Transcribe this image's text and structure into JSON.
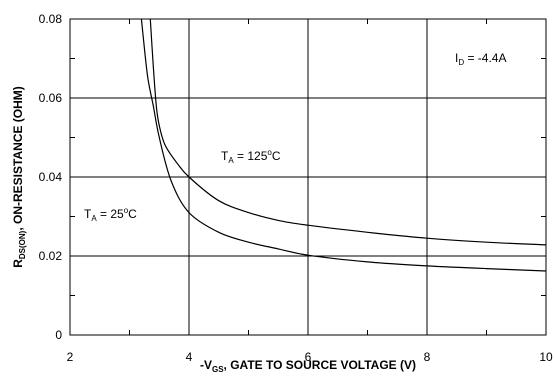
{
  "chart_data": {
    "type": "line",
    "xlim": [
      2,
      10
    ],
    "ylim": [
      0,
      0.08
    ],
    "x_ticks": [
      "2",
      "4",
      "6",
      "8",
      "10"
    ],
    "y_ticks": [
      "0",
      "0.02",
      "0.04",
      "0.06",
      "0.08"
    ],
    "grid": true,
    "xlabel": {
      "prefix": "-V",
      "sub": "GS",
      "rest": ", GATE TO SOURCE VOLTAGE (V)"
    },
    "ylabel": {
      "prefix": "R",
      "sub": "DS(ON)",
      "rest": ", ON-RESISTANCE (OHM)"
    },
    "annotations": {
      "id": {
        "prefix": "I",
        "sub": "D",
        "rest": " = -4.4A"
      },
      "t125": {
        "prefix": "T",
        "sub": "A",
        "rest": " = 125",
        "sup": "o",
        "unit": "C"
      },
      "t25": {
        "prefix": "T",
        "sub": "A",
        "rest": " = 25",
        "sup": "o",
        "unit": "C"
      }
    },
    "series": [
      {
        "x": [
          3.2,
          3.3,
          3.4,
          3.5,
          3.7,
          4.0,
          4.5,
          5.0,
          5.5,
          6.0,
          7.0,
          8.0,
          9.0,
          10.0
        ],
        "y": [
          0.08,
          0.066,
          0.058,
          0.05,
          0.039,
          0.031,
          0.026,
          0.0235,
          0.0218,
          0.0202,
          0.0185,
          0.0175,
          0.0168,
          0.0162
        ]
      },
      {
        "x": [
          3.35,
          3.4,
          3.45,
          3.5,
          3.6,
          3.8,
          4.0,
          4.5,
          5.0,
          5.5,
          6.0,
          7.0,
          8.0,
          9.0,
          10.0
        ],
        "y": [
          0.08,
          0.068,
          0.058,
          0.053,
          0.048,
          0.0435,
          0.04,
          0.034,
          0.031,
          0.029,
          0.0278,
          0.026,
          0.0245,
          0.0235,
          0.0228
        ]
      }
    ]
  }
}
